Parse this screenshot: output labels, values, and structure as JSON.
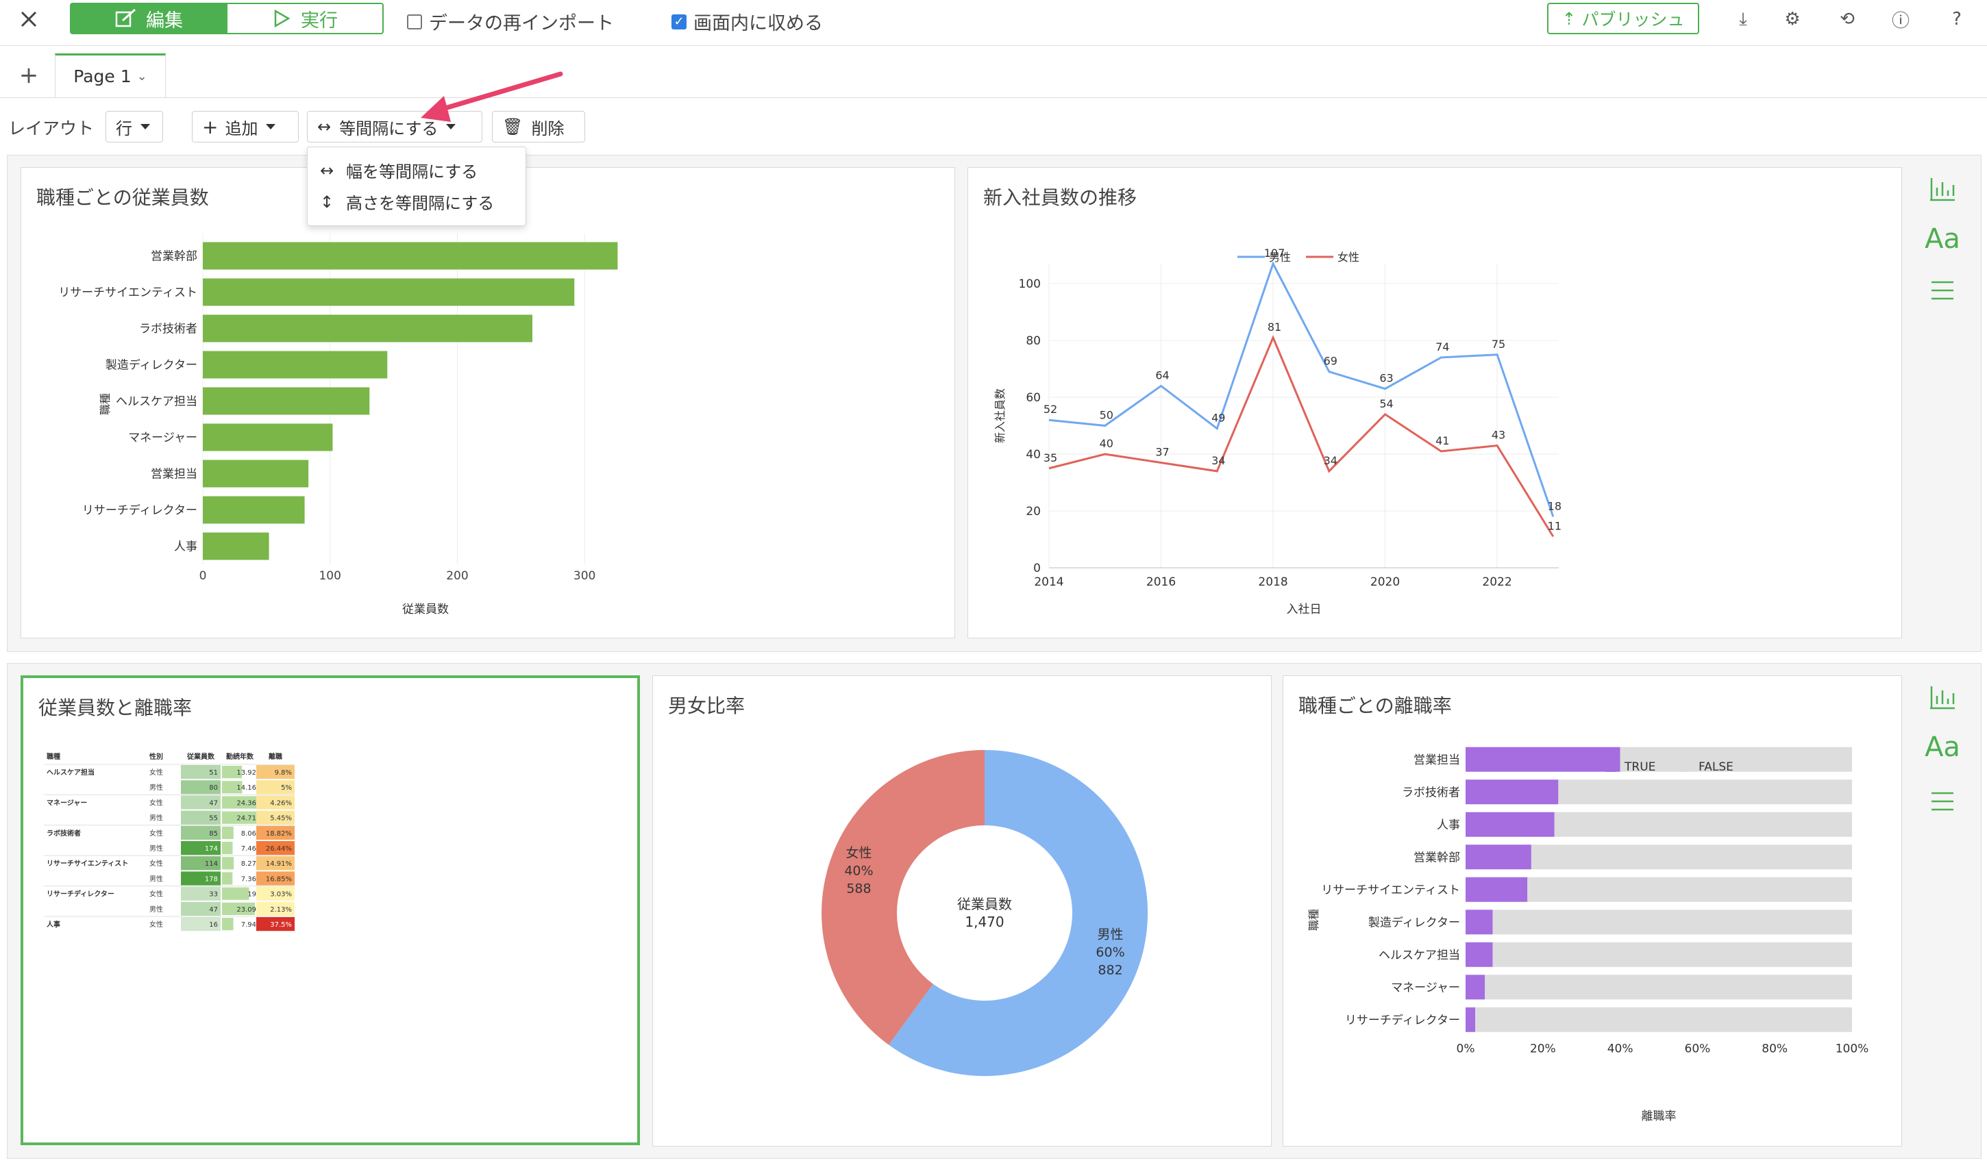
{
  "toolbar": {
    "edit_label": "編集",
    "run_label": "実行",
    "reimport_label": "データの再インポート",
    "fit_label": "画面内に収める",
    "publish_label": "パブリッシュ"
  },
  "tabs": {
    "add_label": "+",
    "page_label": "Page 1"
  },
  "layout_bar": {
    "layout_label": "レイアウト",
    "row_select": "行",
    "add_label": "追加",
    "equal_label": "等間隔にする",
    "delete_label": "削除",
    "menu": [
      "幅を等間隔にする",
      "高さを等間隔にする"
    ]
  },
  "panels": {
    "bar": {
      "title": "職種ごとの従業員数"
    },
    "line": {
      "title": "新入社員数の推移"
    },
    "table": {
      "title": "従業員数と離職率"
    },
    "pie": {
      "title": "男女比率"
    },
    "stack": {
      "title": "職種ごとの離職率"
    }
  },
  "colors": {
    "accent": "#4caf50",
    "bar": "#7ab648",
    "male": "#6fa8f0",
    "female": "#e0625a",
    "pie_male": "#85b6f2",
    "pie_female": "#e08078",
    "true": "#a56de0",
    "false": "#dddddd"
  },
  "chart_data": [
    {
      "type": "bar",
      "orientation": "horizontal",
      "title": "職種ごとの従業員数",
      "categories": [
        "営業幹部",
        "リサーチサイエンティスト",
        "ラボ技術者",
        "製造ディレクター",
        "ヘルスケア担当",
        "マネージャー",
        "営業担当",
        "リサーチディレクター",
        "人事"
      ],
      "values": [
        326,
        292,
        259,
        145,
        131,
        102,
        83,
        80,
        52
      ],
      "xlabel": "従業員数",
      "ylabel": "職種",
      "xlim": [
        0,
        350
      ],
      "xticks": [
        0,
        100,
        200,
        300
      ]
    },
    {
      "type": "line",
      "title": "新入社員数の推移",
      "xlabel": "入社日",
      "ylabel": "新入社員数",
      "x": [
        2014,
        2015,
        2016,
        2017,
        2018,
        2019,
        2020,
        2021,
        2022,
        2023
      ],
      "xticks": [
        2014,
        2016,
        2018,
        2020,
        2022
      ],
      "yticks": [
        0,
        20,
        40,
        60,
        80,
        100
      ],
      "ylim": [
        0,
        107
      ],
      "series": [
        {
          "name": "男性",
          "values": [
            52,
            50,
            64,
            49,
            107,
            69,
            63,
            74,
            75,
            18
          ]
        },
        {
          "name": "女性",
          "values": [
            35,
            40,
            37,
            34,
            81,
            34,
            54,
            41,
            43,
            11
          ]
        }
      ]
    },
    {
      "type": "table",
      "title": "従業員数と離職率",
      "columns": [
        "職種",
        "性別",
        "従業員数",
        "勤続年数",
        "離職"
      ],
      "rows": [
        [
          "ヘルスケア担当",
          "女性",
          "51",
          "13.92",
          "9.8%"
        ],
        [
          "",
          "男性",
          "80",
          "14.16",
          "5%"
        ],
        [
          "マネージャー",
          "女性",
          "47",
          "24.36",
          "4.26%"
        ],
        [
          "",
          "男性",
          "55",
          "24.71",
          "5.45%"
        ],
        [
          "ラボ技術者",
          "女性",
          "85",
          "8.06",
          "18.82%"
        ],
        [
          "",
          "男性",
          "174",
          "7.46",
          "26.44%"
        ],
        [
          "リサーチサイエンティスト",
          "女性",
          "114",
          "8.27",
          "14.91%"
        ],
        [
          "",
          "男性",
          "178",
          "7.36",
          "16.85%"
        ],
        [
          "リサーチディレクター",
          "女性",
          "33",
          "19",
          "3.03%"
        ],
        [
          "",
          "男性",
          "47",
          "23.09",
          "2.13%"
        ],
        [
          "人事",
          "女性",
          "16",
          "7.94",
          "37.5%"
        ]
      ]
    },
    {
      "type": "pie",
      "title": "男女比率",
      "center_label": "従業員数",
      "center_value": "1,470",
      "slices": [
        {
          "name": "男性",
          "percent": "60%",
          "value": 882
        },
        {
          "name": "女性",
          "percent": "40%",
          "value": 588
        }
      ]
    },
    {
      "type": "bar",
      "orientation": "horizontal",
      "stacked": true,
      "title": "職種ごとの離職率",
      "xlabel": "離職率",
      "ylabel": "職種",
      "categories": [
        "営業担当",
        "ラボ技術者",
        "人事",
        "営業幹部",
        "リサーチサイエンティスト",
        "製造ディレクター",
        "ヘルスケア担当",
        "マネージャー",
        "リサーチディレクター"
      ],
      "xticks": [
        "0%",
        "20%",
        "40%",
        "60%",
        "80%",
        "100%"
      ],
      "series": [
        {
          "name": "TRUE",
          "values": [
            0.4,
            0.24,
            0.23,
            0.17,
            0.16,
            0.07,
            0.07,
            0.05,
            0.025
          ]
        },
        {
          "name": "FALSE",
          "values": [
            0.6,
            0.76,
            0.77,
            0.83,
            0.84,
            0.93,
            0.93,
            0.95,
            0.975
          ]
        }
      ]
    }
  ]
}
